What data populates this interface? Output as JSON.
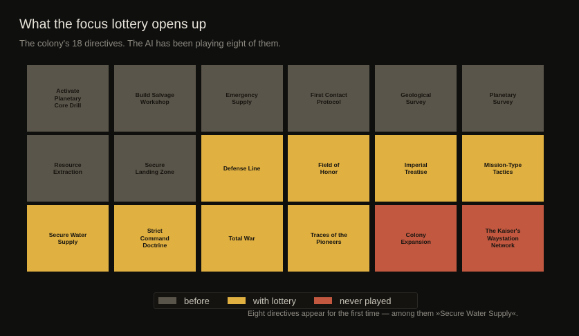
{
  "title": "What the focus lottery opens up",
  "subtitle": "The colony's 18 directives. The AI has been playing eight of them.",
  "footnote": "Eight directives appear for the first time — among them »Secure Water Supply«.",
  "colors": {
    "before": "#5a554a",
    "with_lottery": "#e0b040",
    "never_played": "#c25840"
  },
  "chart_data": {
    "type": "heatmap",
    "categories": [
      "before",
      "with lottery",
      "never played"
    ],
    "cells": [
      {
        "label": "Activate\nPlanetary\nCore Drill",
        "status": "before"
      },
      {
        "label": "Build Salvage\nWorkshop",
        "status": "before"
      },
      {
        "label": "Emergency\nSupply",
        "status": "before"
      },
      {
        "label": "First Contact\nProtocol",
        "status": "before"
      },
      {
        "label": "Geological\nSurvey",
        "status": "before"
      },
      {
        "label": "Planetary\nSurvey",
        "status": "before"
      },
      {
        "label": "Resource\nExtraction",
        "status": "before"
      },
      {
        "label": "Secure\nLanding Zone",
        "status": "before"
      },
      {
        "label": "Defense Line",
        "status": "with lottery"
      },
      {
        "label": "Field of\nHonor",
        "status": "with lottery"
      },
      {
        "label": "Imperial\nTreatise",
        "status": "with lottery"
      },
      {
        "label": "Mission-Type\nTactics",
        "status": "with lottery"
      },
      {
        "label": "Secure Water\nSupply",
        "status": "with lottery"
      },
      {
        "label": "Strict\nCommand\nDoctrine",
        "status": "with lottery"
      },
      {
        "label": "Total War",
        "status": "with lottery"
      },
      {
        "label": "Traces of the\nPioneers",
        "status": "with lottery"
      },
      {
        "label": "Colony\nExpansion",
        "status": "never played"
      },
      {
        "label": "The Kaiser's\nWaystation\nNetwork",
        "status": "never played"
      }
    ],
    "legend": [
      {
        "label": "before",
        "status": "before"
      },
      {
        "label": "with lottery",
        "status": "with lottery"
      },
      {
        "label": "never played",
        "status": "never played"
      }
    ],
    "legend_position": "bottom-center"
  }
}
